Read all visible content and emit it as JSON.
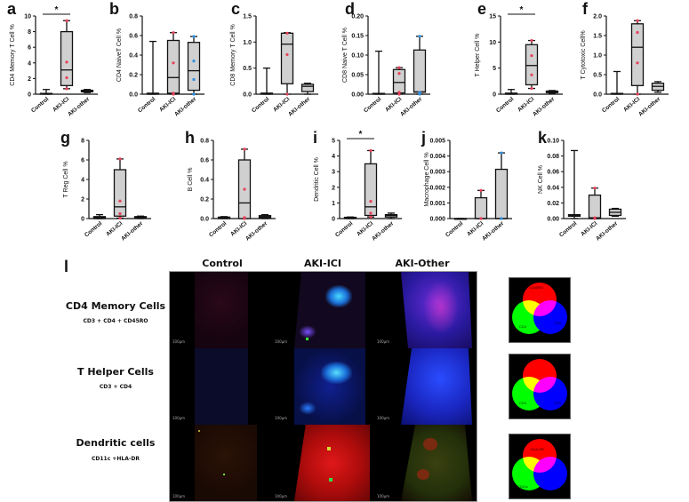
{
  "figure": {
    "panel_letters": [
      "a",
      "b",
      "c",
      "d",
      "e",
      "f",
      "g",
      "h",
      "i",
      "j",
      "k"
    ],
    "section_l": {
      "letter": "l",
      "columns": [
        "Control",
        "AKI-ICI",
        "AKI-Other"
      ],
      "rows": [
        {
          "title": "CD4 Memory Cells",
          "markers": "CD3 + CD4 + CD45RO",
          "venn": {
            "top": "CD45RO",
            "left": "CD4",
            "right": "CD3"
          }
        },
        {
          "title": "T Helper Cells",
          "markers": "CD3 + CD4",
          "venn": {
            "top": "",
            "left": "CD4",
            "right": "CD3"
          }
        },
        {
          "title": "Dendritic cells",
          "markers": "CD11c +HLA-DR",
          "venn": {
            "top": "HLA-DR",
            "left": "CD11c",
            "right": ""
          }
        }
      ],
      "scale_bar": "100μm"
    }
  },
  "colors": {
    "control": "#111111",
    "aki_ici": "#e8405a",
    "aki_other": "#2f8fe0",
    "box_fill": "#d0d0d0"
  },
  "chart_data": [
    {
      "panel": "a",
      "type": "box",
      "ylabel": "CD4 Memory T Cell %",
      "ylim": [
        0,
        10
      ],
      "yticks": [
        "0",
        "2",
        "4",
        "6",
        "8",
        "10"
      ],
      "categories": [
        "Control",
        "AKI-ICI",
        "AKI-other"
      ],
      "boxes": [
        {
          "min": 0,
          "q1": 0,
          "median": 0.05,
          "q3": 0.1,
          "max": 0.6
        },
        {
          "min": 0.7,
          "q1": 1.1,
          "median": 3.1,
          "q3": 8.0,
          "max": 9.4,
          "points": [
            0.7,
            2.1,
            4.1,
            9.4
          ]
        },
        {
          "min": 0.2,
          "q1": 0.3,
          "median": 0.4,
          "q3": 0.5,
          "max": 0.6
        }
      ],
      "significance": {
        "from": 0,
        "to": 1,
        "label": "*"
      }
    },
    {
      "panel": "b",
      "type": "box",
      "ylabel": "CD4 NaiveT Cell %",
      "ylim": [
        0,
        0.8
      ],
      "yticks": [
        "0.0",
        "0.2",
        "0.4",
        "0.6",
        "0.8"
      ],
      "categories": [
        "Control",
        "AKI-ICI",
        "AKI-other"
      ],
      "boxes": [
        {
          "min": 0,
          "q1": 0,
          "median": 0.005,
          "q3": 0.01,
          "max": 0.54
        },
        {
          "min": 0,
          "q1": 0.01,
          "median": 0.17,
          "q3": 0.55,
          "max": 0.63,
          "points": [
            0,
            0.01,
            0.32,
            0.63
          ]
        },
        {
          "min": 0,
          "q1": 0.04,
          "median": 0.24,
          "q3": 0.53,
          "max": 0.59,
          "points": [
            0,
            0.15,
            0.34,
            0.59
          ]
        }
      ]
    },
    {
      "panel": "c",
      "type": "box",
      "ylabel": "CD8 Memory T Cell %",
      "ylim": [
        0,
        1.5
      ],
      "yticks": [
        "0.0",
        "0.5",
        "1.0",
        "1.5"
      ],
      "categories": [
        "Control",
        "AKI-ICI",
        "AKI-other"
      ],
      "boxes": [
        {
          "min": 0,
          "q1": 0,
          "median": 0.01,
          "q3": 0.02,
          "max": 0.5
        },
        {
          "min": 0,
          "q1": 0.2,
          "median": 0.96,
          "q3": 1.17,
          "max": 1.18,
          "points": [
            0,
            0.76,
            1.17
          ]
        },
        {
          "min": 0,
          "q1": 0.05,
          "median": 0.15,
          "q3": 0.19,
          "max": 0.21
        }
      ]
    },
    {
      "panel": "d",
      "type": "box",
      "ylabel": "CD8 Naive T Cell %",
      "ylim": [
        0,
        0.2
      ],
      "yticks": [
        "0.00",
        "0.05",
        "0.10",
        "0.15",
        "0.20"
      ],
      "categories": [
        "Control",
        "AKI-ICI",
        "AKI-other"
      ],
      "boxes": [
        {
          "min": 0,
          "q1": 0,
          "median": 0.001,
          "q3": 0.002,
          "max": 0.11
        },
        {
          "min": 0,
          "q1": 0.003,
          "median": 0.03,
          "q3": 0.063,
          "max": 0.068,
          "points": [
            0,
            0.005,
            0.053,
            0.068
          ]
        },
        {
          "min": 0,
          "q1": 0.005,
          "median": 0.006,
          "q3": 0.113,
          "max": 0.148,
          "points": [
            0,
            0.005,
            0.148
          ]
        }
      ]
    },
    {
      "panel": "e",
      "type": "box",
      "ylabel": "T Helper Cell %",
      "ylim": [
        0,
        15
      ],
      "yticks": [
        "0",
        "5",
        "10",
        "15"
      ],
      "categories": [
        "Control",
        "AKI-ICI",
        "AKI-other"
      ],
      "boxes": [
        {
          "min": 0,
          "q1": 0,
          "median": 0.1,
          "q3": 0.2,
          "max": 0.9
        },
        {
          "min": 1.1,
          "q1": 1.8,
          "median": 5.5,
          "q3": 9.5,
          "max": 10.3,
          "points": [
            1.1,
            3.7,
            7.4,
            10.3
          ]
        },
        {
          "min": 0.2,
          "q1": 0.3,
          "median": 0.4,
          "q3": 0.6,
          "max": 0.7
        }
      ],
      "significance": {
        "from": 0,
        "to": 1,
        "label": "*"
      }
    },
    {
      "panel": "f",
      "type": "box",
      "ylabel": "T Cytotoxic Cell%",
      "ylim": [
        0,
        2
      ],
      "yticks": [
        "0.0",
        "0.5",
        "1.0",
        "1.5",
        "2.0"
      ],
      "categories": [
        "Control",
        "AKI-ICI",
        "AKI-other"
      ],
      "boxes": [
        {
          "min": 0,
          "q1": 0,
          "median": 0.01,
          "q3": 0.02,
          "max": 0.58
        },
        {
          "min": 0,
          "q1": 0.22,
          "median": 1.2,
          "q3": 1.8,
          "max": 1.88,
          "points": [
            0,
            0.8,
            1.58,
            1.88
          ]
        },
        {
          "min": 0.05,
          "q1": 0.1,
          "median": 0.2,
          "q3": 0.28,
          "max": 0.32
        }
      ]
    },
    {
      "panel": "g",
      "type": "box",
      "ylabel": "T Reg Cell %",
      "ylim": [
        0,
        8
      ],
      "yticks": [
        "0",
        "2",
        "4",
        "6",
        "8"
      ],
      "categories": [
        "Control",
        "AKI-ICI",
        "AKI-other"
      ],
      "boxes": [
        {
          "min": 0,
          "q1": 0,
          "median": 0.1,
          "q3": 0.2,
          "max": 0.4
        },
        {
          "min": 0.05,
          "q1": 0.25,
          "median": 1.2,
          "q3": 5.0,
          "max": 6.1,
          "points": [
            0.05,
            0.5,
            1.8,
            6.1
          ]
        },
        {
          "min": 0,
          "q1": 0.1,
          "median": 0.15,
          "q3": 0.2,
          "max": 0.25
        }
      ]
    },
    {
      "panel": "h",
      "type": "box",
      "ylabel": "B Cell %",
      "ylim": [
        0,
        0.8
      ],
      "yticks": [
        "0.0",
        "0.2",
        "0.4",
        "0.6",
        "0.8"
      ],
      "categories": [
        "Control",
        "AKI-ICI",
        "AKI-other"
      ],
      "boxes": [
        {
          "min": 0,
          "q1": 0,
          "median": 0.01,
          "q3": 0.015,
          "max": 0.02
        },
        {
          "min": 0,
          "q1": 0,
          "median": 0.16,
          "q3": 0.6,
          "max": 0.71,
          "points": [
            0,
            0.01,
            0.3,
            0.71
          ]
        },
        {
          "min": 0,
          "q1": 0.01,
          "median": 0.02,
          "q3": 0.03,
          "max": 0.04
        }
      ]
    },
    {
      "panel": "i",
      "type": "box",
      "ylabel": "Dendritic Cell %",
      "ylim": [
        0,
        5
      ],
      "yticks": [
        "0",
        "1",
        "2",
        "3",
        "4",
        "5"
      ],
      "categories": [
        "Control",
        "AKI-ICI",
        "AKI-other"
      ],
      "boxes": [
        {
          "min": 0,
          "q1": 0,
          "median": 0.05,
          "q3": 0.08,
          "max": 0.1
        },
        {
          "min": 0.1,
          "q1": 0.2,
          "median": 0.75,
          "q3": 3.5,
          "max": 4.35,
          "points": [
            0.1,
            0.35,
            1.1,
            4.35
          ]
        },
        {
          "min": 0,
          "q1": 0.1,
          "median": 0.2,
          "q3": 0.25,
          "max": 0.35
        }
      ],
      "significance": {
        "from": 0,
        "to": 1,
        "label": "*"
      }
    },
    {
      "panel": "j",
      "type": "box",
      "ylabel": "Macrophage Cell %",
      "ylim": [
        0,
        0.005
      ],
      "yticks": [
        "0.000",
        "0.001",
        "0.002",
        "0.003",
        "0.004",
        "0.005"
      ],
      "categories": [
        "Control",
        "AKI-ICI",
        "AKI-other"
      ],
      "boxes": [
        {
          "min": 0,
          "q1": 0,
          "median": 0,
          "q3": 0,
          "max": 0
        },
        {
          "min": 0,
          "q1": 0,
          "median": 0,
          "q3": 0.00133,
          "max": 0.0018,
          "points": [
            0,
            0,
            0.0018
          ]
        },
        {
          "min": 0,
          "q1": 0,
          "median": 0,
          "q3": 0.00315,
          "max": 0.0042,
          "points": [
            0,
            0,
            0.0042
          ]
        }
      ]
    },
    {
      "panel": "k",
      "type": "box",
      "ylabel": "NK Cell %",
      "ylim": [
        0,
        0.1
      ],
      "yticks": [
        "0.00",
        "0.02",
        "0.04",
        "0.06",
        "0.08",
        "0.10"
      ],
      "categories": [
        "Control",
        "AKI-ICI",
        "AKI-other"
      ],
      "boxes": [
        {
          "min": 0,
          "q1": 0.003,
          "median": 0.004,
          "q3": 0.005,
          "max": 0.087
        },
        {
          "min": 0,
          "q1": 0,
          "median": 0.001,
          "q3": 0.03,
          "max": 0.039,
          "points": [
            0,
            0.001,
            0.039
          ]
        },
        {
          "min": 0.003,
          "q1": 0.004,
          "median": 0.008,
          "q3": 0.012,
          "max": 0.013
        }
      ]
    }
  ]
}
